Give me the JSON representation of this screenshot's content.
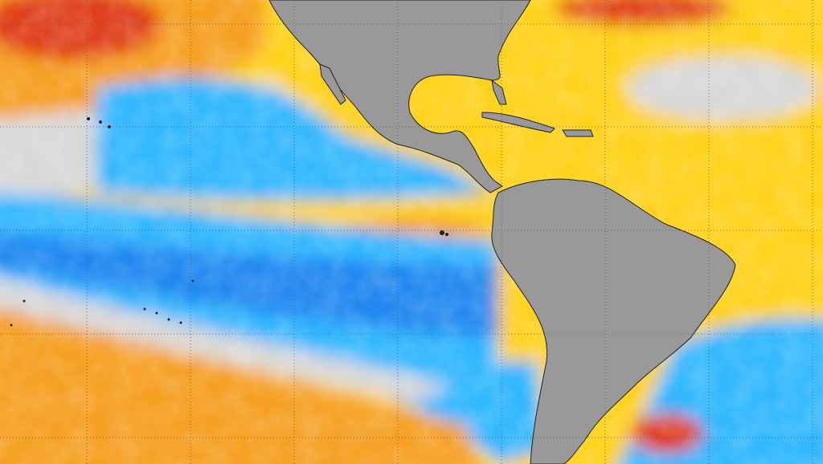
{
  "map": {
    "colors": {
      "warm_strong": "#e0401a",
      "warm": "#f5a020",
      "warm_light": "#ffd21e",
      "neutral": "#d8d8d8",
      "cool_light": "#30b8ff",
      "cool": "#2288f0",
      "cool_strong": "#1060d8",
      "land": "#999999",
      "coast": "#222222",
      "grid": "#555555"
    }
  }
}
